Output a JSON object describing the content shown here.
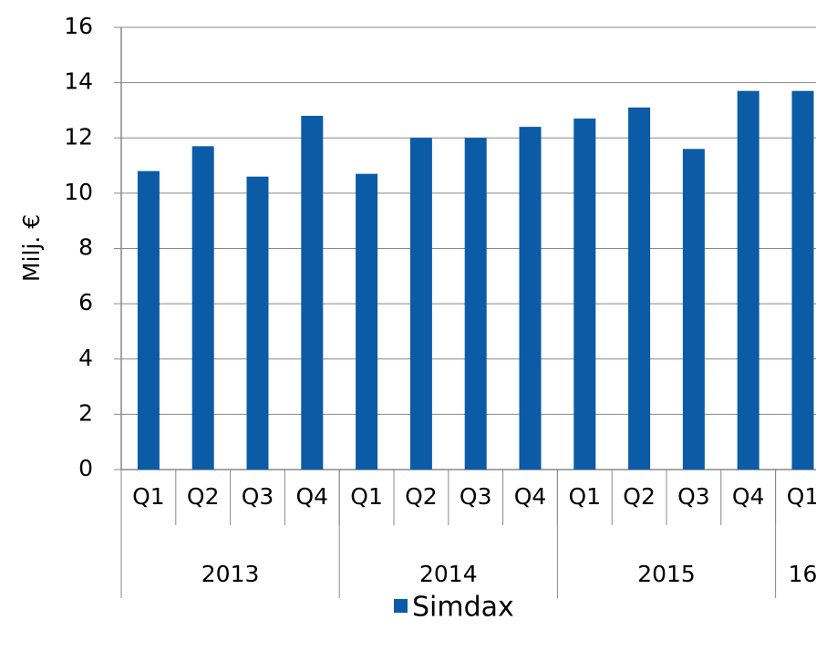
{
  "chart_data": {
    "type": "bar",
    "y_label": "Milj. €",
    "categories": [
      "Q1",
      "Q2",
      "Q3",
      "Q4",
      "Q1",
      "Q2",
      "Q3",
      "Q4",
      "Q1",
      "Q2",
      "Q3",
      "Q4",
      "Q1"
    ],
    "groups": [
      {
        "label": "2013",
        "span": 4
      },
      {
        "label": "2014",
        "span": 4
      },
      {
        "label": "2015",
        "span": 4
      },
      {
        "label": "16",
        "span": 1
      }
    ],
    "series": [
      {
        "name": "Simdax",
        "color": "#0b5ba6",
        "values": [
          10.8,
          11.7,
          10.6,
          12.8,
          10.7,
          12.0,
          12.0,
          12.4,
          12.7,
          13.1,
          11.6,
          13.7,
          13.7
        ]
      }
    ],
    "ylim": [
      0,
      16
    ],
    "yticks": [
      0,
      2,
      4,
      6,
      8,
      10,
      12,
      14,
      16
    ],
    "grid": true,
    "legend": "bottom"
  }
}
